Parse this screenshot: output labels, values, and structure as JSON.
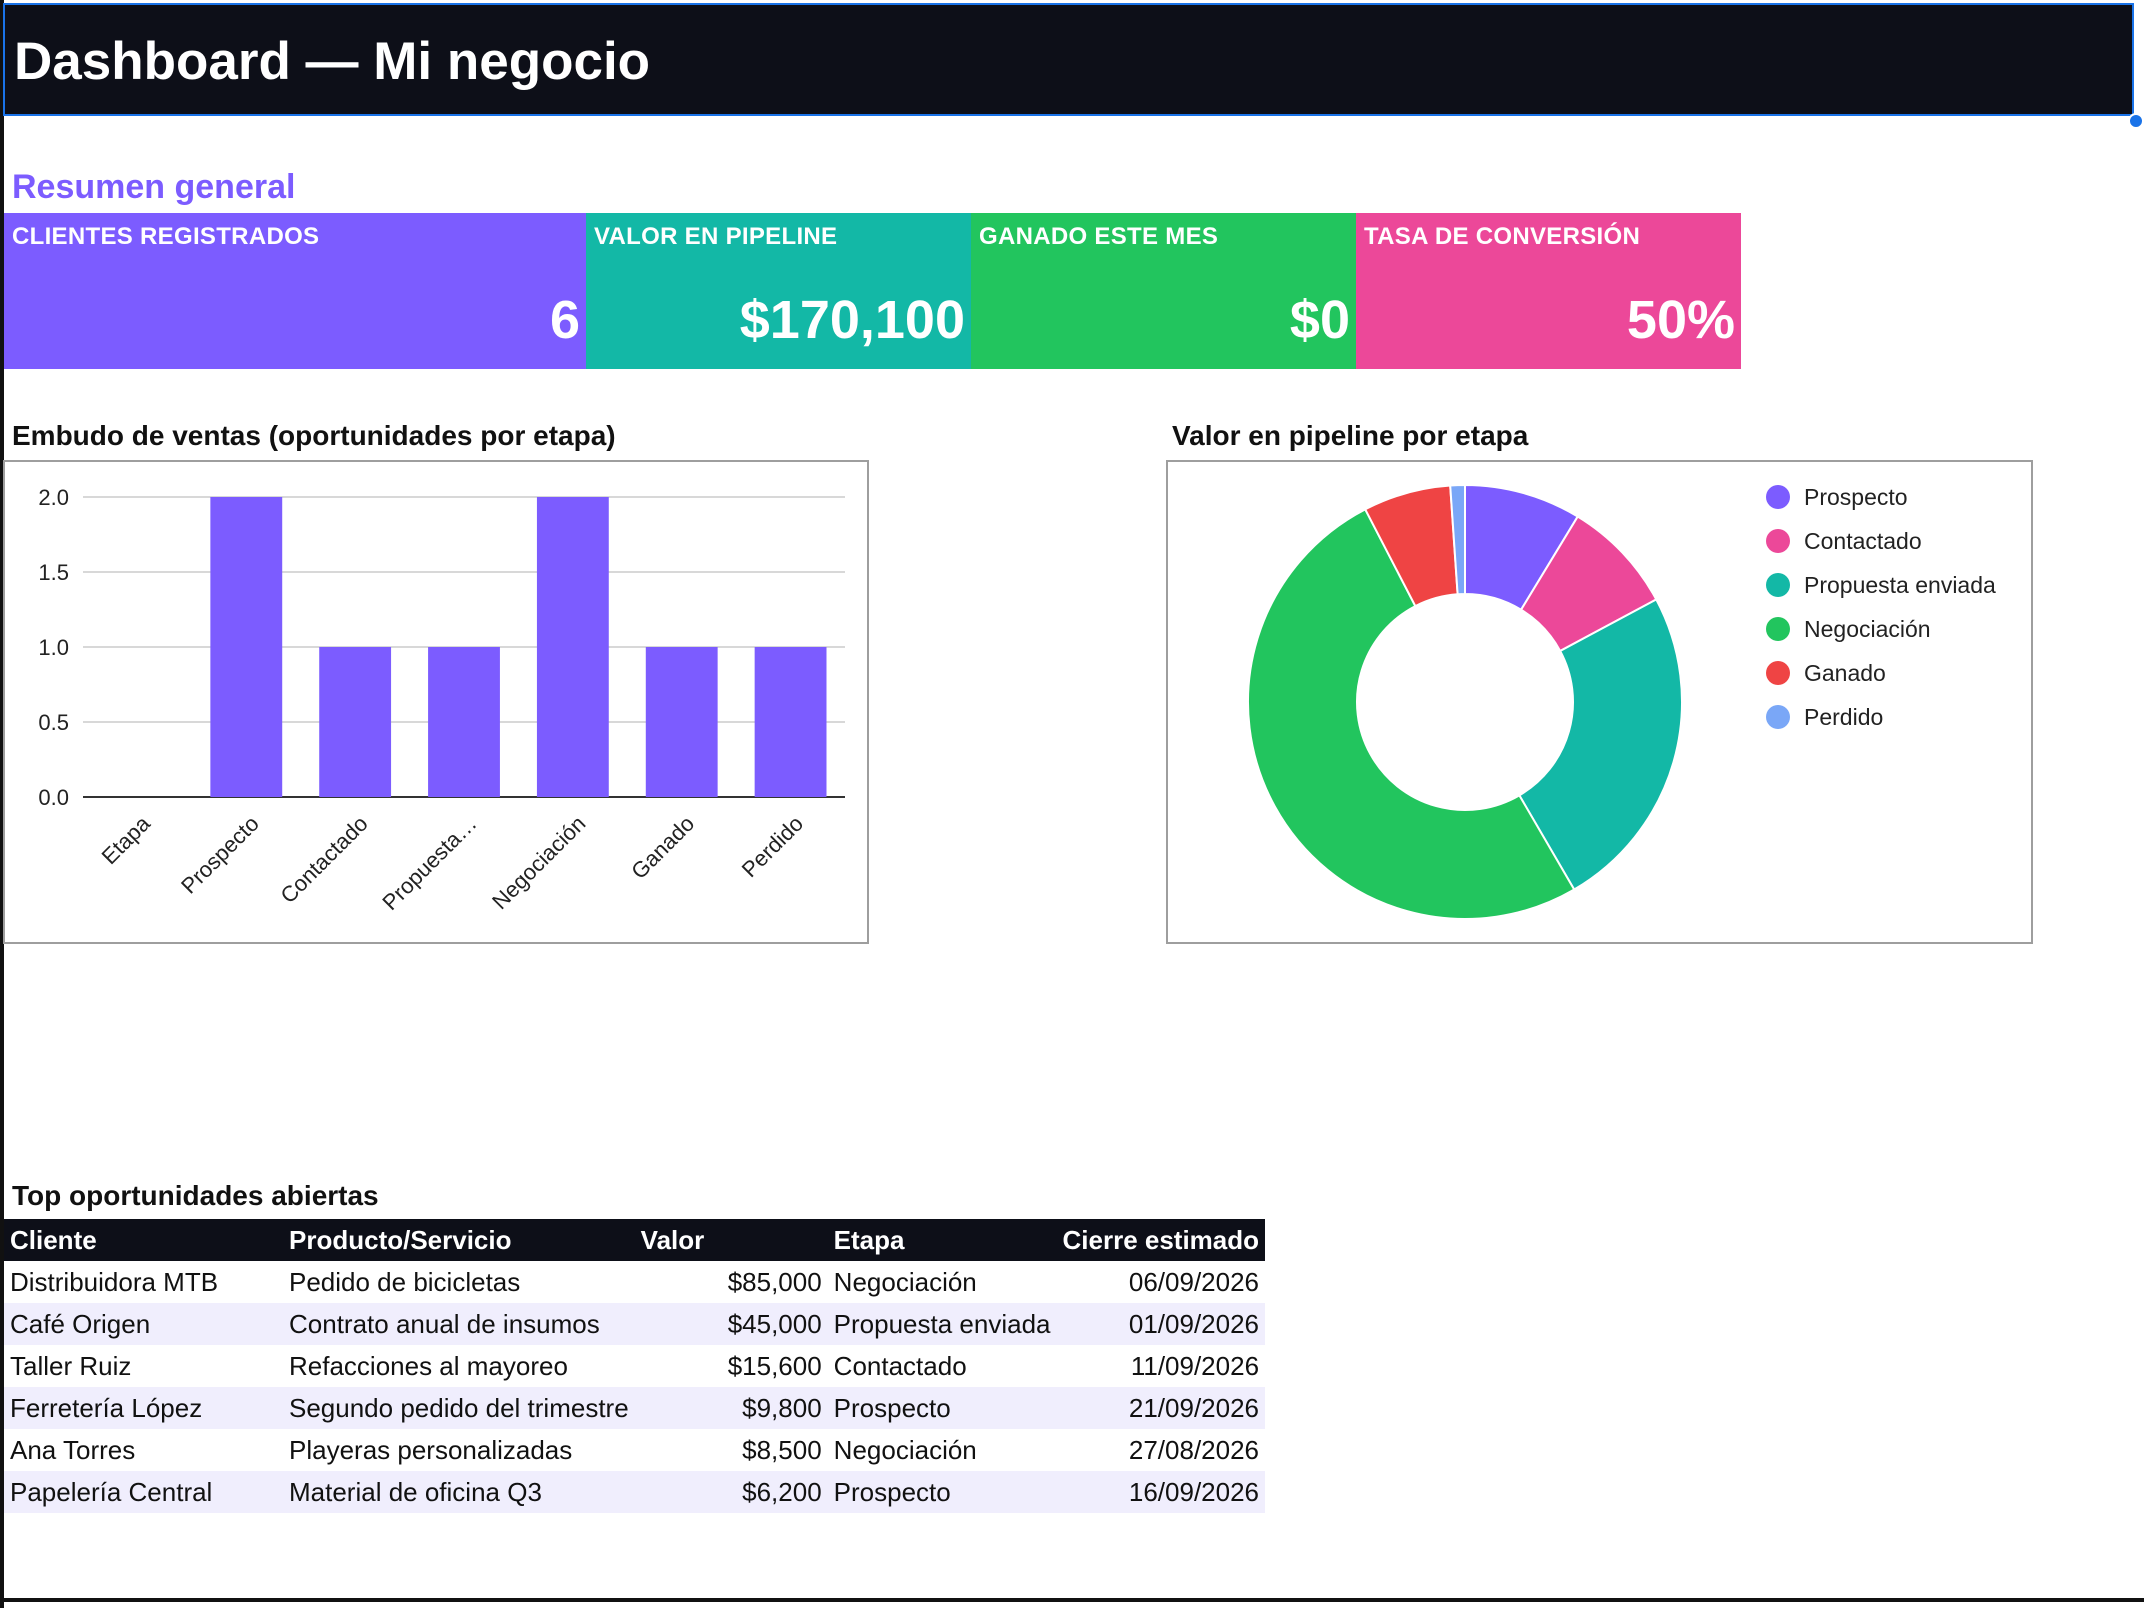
{
  "header": {
    "title": "Dashboard — Mi negocio"
  },
  "summary": {
    "title": "Resumen general",
    "kpis": [
      {
        "label": "CLIENTES REGISTRADOS",
        "value": "6",
        "color": "#7c5cff"
      },
      {
        "label": "VALOR EN PIPELINE",
        "value": "$170,100",
        "color": "#13b8a6"
      },
      {
        "label": "GANADO ESTE MES",
        "value": "$0",
        "color": "#22c55e"
      },
      {
        "label": "TASA DE CONVERSIÓN",
        "value": "50%",
        "color": "#ec4899"
      }
    ]
  },
  "bar_chart_title": "Embudo de ventas (oportunidades por etapa)",
  "pie_chart_title": "Valor en pipeline por etapa",
  "chart_data": [
    {
      "type": "bar",
      "title": "Embudo de ventas (oportunidades por etapa)",
      "categories": [
        "Etapa",
        "Prospecto",
        "Contactado",
        "Propuesta…",
        "Negociación",
        "Ganado",
        "Perdido"
      ],
      "values": [
        0,
        2,
        1,
        1,
        2,
        1,
        1
      ],
      "ylim": [
        0,
        2
      ],
      "yticks": [
        "0.0",
        "0.5",
        "1.0",
        "1.5",
        "2.0"
      ],
      "ytick_values": [
        0,
        0.5,
        1,
        1.5,
        2
      ],
      "grid": true,
      "color": "#7c5cff"
    },
    {
      "type": "pie",
      "donut": true,
      "title": "Valor en pipeline por etapa",
      "labels": [
        "Prospecto",
        "Contactado",
        "Propuesta enviada",
        "Negociación",
        "Ganado",
        "Perdido"
      ],
      "values": [
        16000,
        15600,
        45000,
        93500,
        12000,
        2000
      ],
      "colors": [
        "#7c5cff",
        "#ec4899",
        "#13b8a6",
        "#22c55e",
        "#ef4444",
        "#7aa7f7"
      ],
      "legend": "right"
    }
  ],
  "table": {
    "title": "Top oportunidades abiertas",
    "columns": [
      "Cliente",
      "Producto/Servicio",
      "Valor",
      "Etapa",
      "Cierre estimado"
    ],
    "rows": [
      [
        "Distribuidora MTB",
        "Pedido de bicicletas",
        "$85,000",
        "Negociación",
        "06/09/2026"
      ],
      [
        "Café Origen",
        "Contrato anual de insumos",
        "$45,000",
        "Propuesta enviada",
        "01/09/2026"
      ],
      [
        "Taller Ruiz",
        "Refacciones al mayoreo",
        "$15,600",
        "Contactado",
        "11/09/2026"
      ],
      [
        "Ferretería López",
        "Segundo pedido del trimestre",
        "$9,800",
        "Prospecto",
        "21/09/2026"
      ],
      [
        "Ana Torres",
        "Playeras personalizadas",
        "$8,500",
        "Negociación",
        "27/08/2026"
      ],
      [
        "Papelería Central",
        "Material de oficina Q3",
        "$6,200",
        "Prospecto",
        "16/09/2026"
      ]
    ]
  }
}
